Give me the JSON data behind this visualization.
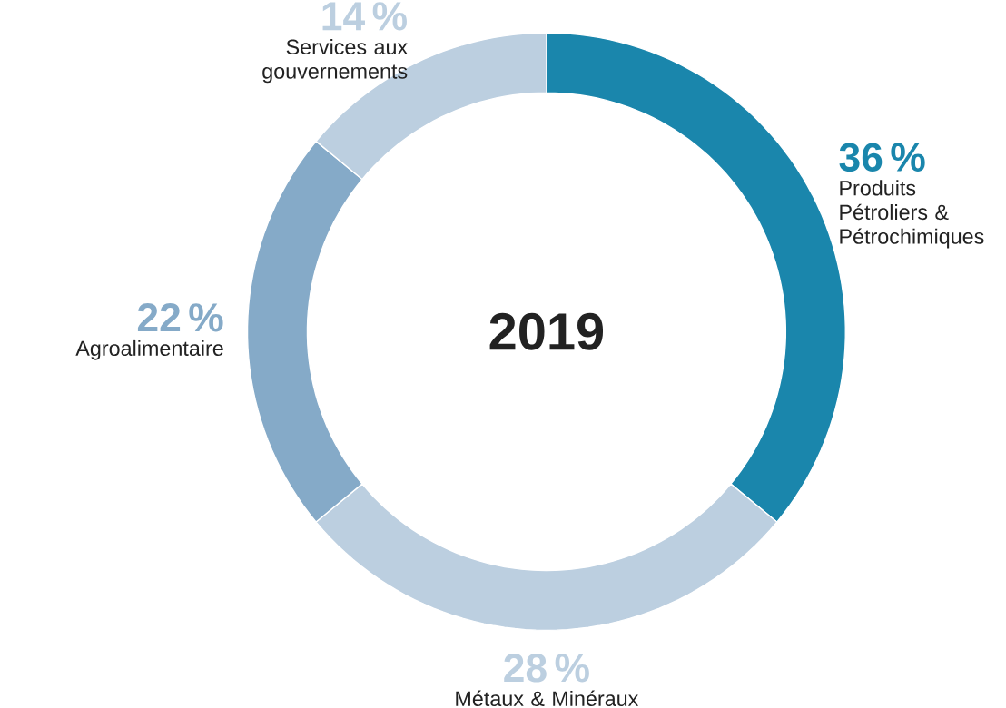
{
  "chart_data": {
    "type": "donut",
    "title": "2019",
    "categories": [
      "Produits Pétroliers & Pétrochimiques",
      "Métaux & Minéraux",
      "Agroalimentaire",
      "Services aux gouvernements"
    ],
    "values": [
      36,
      28,
      22,
      14
    ],
    "colors": [
      "#1a86ac",
      "#bccfe0",
      "#85aac8",
      "#bccfe0"
    ],
    "value_labels": [
      "36 %",
      "28 %",
      "22 %",
      "14 %"
    ]
  }
}
